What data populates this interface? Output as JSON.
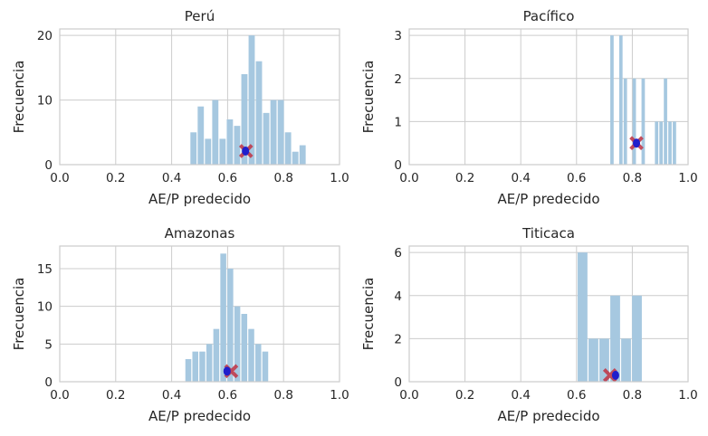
{
  "chart_data": [
    {
      "type": "bar",
      "title": "Perú",
      "xlabel": "AE/P predecido",
      "ylabel": "Frecuencia",
      "xlim": [
        0,
        1
      ],
      "ylim": [
        0,
        21
      ],
      "xticks": [
        "0.0",
        "0.2",
        "0.4",
        "0.6",
        "0.8",
        "1.0"
      ],
      "yticks": [
        0,
        10,
        20
      ],
      "bins": [
        {
          "x0": 0.467,
          "x1": 0.493,
          "count": 5
        },
        {
          "x0": 0.493,
          "x1": 0.519,
          "count": 9
        },
        {
          "x0": 0.519,
          "x1": 0.545,
          "count": 4
        },
        {
          "x0": 0.545,
          "x1": 0.571,
          "count": 10
        },
        {
          "x0": 0.571,
          "x1": 0.597,
          "count": 4
        },
        {
          "x0": 0.597,
          "x1": 0.623,
          "count": 7
        },
        {
          "x0": 0.623,
          "x1": 0.649,
          "count": 6
        },
        {
          "x0": 0.649,
          "x1": 0.675,
          "count": 14
        },
        {
          "x0": 0.675,
          "x1": 0.701,
          "count": 20
        },
        {
          "x0": 0.701,
          "x1": 0.727,
          "count": 16
        },
        {
          "x0": 0.727,
          "x1": 0.753,
          "count": 8
        },
        {
          "x0": 0.753,
          "x1": 0.779,
          "count": 10
        },
        {
          "x0": 0.779,
          "x1": 0.805,
          "count": 10
        },
        {
          "x0": 0.805,
          "x1": 0.831,
          "count": 5
        },
        {
          "x0": 0.831,
          "x1": 0.857,
          "count": 2
        },
        {
          "x0": 0.857,
          "x1": 0.883,
          "count": 3
        }
      ],
      "markers": [
        {
          "kind": "cross",
          "x": 0.666,
          "y": 2.1
        },
        {
          "kind": "dot",
          "x": 0.664,
          "y": 2.1
        }
      ]
    },
    {
      "type": "bar",
      "title": "Pacífico",
      "xlabel": "AE/P predecido",
      "ylabel": "Frecuencia",
      "xlim": [
        0,
        1
      ],
      "ylim": [
        0,
        3.15
      ],
      "xticks": [
        "0.0",
        "0.2",
        "0.4",
        "0.6",
        "0.8",
        "1.0"
      ],
      "yticks": [
        0,
        1,
        2,
        3
      ],
      "bins": [
        {
          "x0": 0.721,
          "x1": 0.737,
          "count": 3
        },
        {
          "x0": 0.737,
          "x1": 0.753,
          "count": 0
        },
        {
          "x0": 0.753,
          "x1": 0.769,
          "count": 3
        },
        {
          "x0": 0.769,
          "x1": 0.785,
          "count": 2
        },
        {
          "x0": 0.785,
          "x1": 0.801,
          "count": 0
        },
        {
          "x0": 0.801,
          "x1": 0.817,
          "count": 2
        },
        {
          "x0": 0.817,
          "x1": 0.833,
          "count": 0
        },
        {
          "x0": 0.833,
          "x1": 0.849,
          "count": 2
        },
        {
          "x0": 0.849,
          "x1": 0.865,
          "count": 0
        },
        {
          "x0": 0.865,
          "x1": 0.881,
          "count": 0
        },
        {
          "x0": 0.881,
          "x1": 0.897,
          "count": 1
        },
        {
          "x0": 0.897,
          "x1": 0.913,
          "count": 1
        },
        {
          "x0": 0.913,
          "x1": 0.929,
          "count": 2
        },
        {
          "x0": 0.929,
          "x1": 0.945,
          "count": 1
        },
        {
          "x0": 0.945,
          "x1": 0.961,
          "count": 1
        }
      ],
      "markers": [
        {
          "kind": "cross",
          "x": 0.815,
          "y": 0.5
        },
        {
          "kind": "dot",
          "x": 0.815,
          "y": 0.5
        }
      ]
    },
    {
      "type": "bar",
      "title": "Amazonas",
      "xlabel": "AE/P predecido",
      "ylabel": "Frecuencia",
      "xlim": [
        0,
        1
      ],
      "ylim": [
        0,
        18
      ],
      "xticks": [
        "0.0",
        "0.2",
        "0.4",
        "0.6",
        "0.8",
        "1.0"
      ],
      "yticks": [
        0,
        5,
        10,
        15
      ],
      "bins": [
        {
          "x0": 0.449,
          "x1": 0.474,
          "count": 3
        },
        {
          "x0": 0.474,
          "x1": 0.499,
          "count": 4
        },
        {
          "x0": 0.499,
          "x1": 0.524,
          "count": 4
        },
        {
          "x0": 0.524,
          "x1": 0.549,
          "count": 5
        },
        {
          "x0": 0.549,
          "x1": 0.574,
          "count": 7
        },
        {
          "x0": 0.574,
          "x1": 0.599,
          "count": 17
        },
        {
          "x0": 0.599,
          "x1": 0.624,
          "count": 15
        },
        {
          "x0": 0.624,
          "x1": 0.649,
          "count": 10
        },
        {
          "x0": 0.649,
          "x1": 0.674,
          "count": 9
        },
        {
          "x0": 0.674,
          "x1": 0.699,
          "count": 7
        },
        {
          "x0": 0.699,
          "x1": 0.724,
          "count": 5
        },
        {
          "x0": 0.724,
          "x1": 0.749,
          "count": 4
        }
      ],
      "markers": [
        {
          "kind": "cross",
          "x": 0.613,
          "y": 1.4
        },
        {
          "kind": "dot",
          "x": 0.598,
          "y": 1.4
        }
      ]
    },
    {
      "type": "bar",
      "title": "Titicaca",
      "xlabel": "AE/P predecido",
      "ylabel": "Frecuencia",
      "xlim": [
        0,
        1
      ],
      "ylim": [
        0,
        6.3
      ],
      "xticks": [
        "0.0",
        "0.2",
        "0.4",
        "0.6",
        "0.8",
        "1.0"
      ],
      "yticks": [
        0,
        2,
        4,
        6
      ],
      "bins": [
        {
          "x0": 0.604,
          "x1": 0.643,
          "count": 6
        },
        {
          "x0": 0.643,
          "x1": 0.682,
          "count": 2
        },
        {
          "x0": 0.682,
          "x1": 0.721,
          "count": 2
        },
        {
          "x0": 0.721,
          "x1": 0.76,
          "count": 4
        },
        {
          "x0": 0.76,
          "x1": 0.799,
          "count": 2
        },
        {
          "x0": 0.799,
          "x1": 0.838,
          "count": 4
        }
      ],
      "markers": [
        {
          "kind": "cross",
          "x": 0.72,
          "y": 0.3
        },
        {
          "kind": "dot",
          "x": 0.74,
          "y": 0.3
        }
      ]
    }
  ],
  "colors": {
    "bar_fill": "#a6c8e0",
    "grid": "#cccccc",
    "spine": "#cccccc",
    "cross": "#c03b4b",
    "dot": "#1f1fcc",
    "text": "#262626"
  }
}
